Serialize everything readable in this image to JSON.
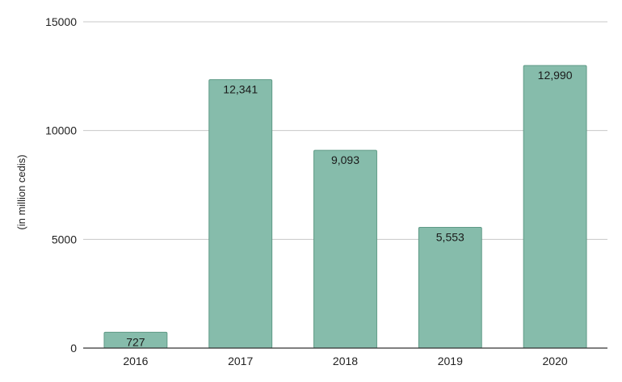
{
  "chart_data": {
    "type": "bar",
    "categories": [
      "2016",
      "2017",
      "2018",
      "2019",
      "2020"
    ],
    "values": [
      727,
      12341,
      9093,
      5553,
      12990
    ],
    "data_labels": [
      "727",
      "12,341",
      "9,093",
      "5,553",
      "12,990"
    ],
    "title": "",
    "xlabel": "",
    "ylabel": "(in million cedis)",
    "ylim": [
      0,
      15000
    ],
    "yticks": [
      0,
      5000,
      10000,
      15000
    ],
    "grid": true,
    "bar_color": "#86bcab",
    "bar_edge_color": "#5f9a86"
  }
}
